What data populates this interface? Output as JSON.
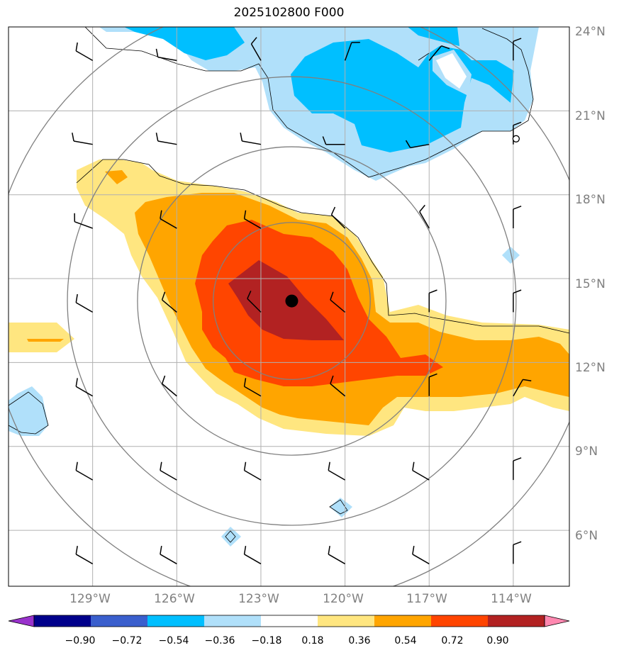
{
  "title": "2025102800 F000",
  "map": {
    "lon_range": [
      -132,
      -112
    ],
    "lat_range": [
      4,
      24
    ],
    "lat_ticks": [
      {
        "value": 24,
        "label": "24°N"
      },
      {
        "value": 21,
        "label": "21°N"
      },
      {
        "value": 18,
        "label": "18°N"
      },
      {
        "value": 15,
        "label": "15°N"
      },
      {
        "value": 12,
        "label": "12°N"
      },
      {
        "value": 9,
        "label": "9°N"
      },
      {
        "value": 6,
        "label": "6°N"
      }
    ],
    "lon_ticks": [
      {
        "value": -129,
        "label": "129°W"
      },
      {
        "value": -126,
        "label": "126°W"
      },
      {
        "value": -123,
        "label": "123°W"
      },
      {
        "value": -120,
        "label": "120°W"
      },
      {
        "value": -117,
        "label": "117°W"
      },
      {
        "value": -114,
        "label": "114°W"
      }
    ],
    "storm_center": {
      "lon": -121.9,
      "lat": 14.2
    },
    "small_marker": {
      "lon": -113.9,
      "lat": 20.0
    },
    "range_rings_deg": [
      2.8,
      5.5,
      8.0,
      10.8
    ]
  },
  "colorbar": {
    "levels": [
      "−0.90",
      "−0.72",
      "−0.54",
      "−0.36",
      "−0.18",
      "0.18",
      "0.36",
      "0.54",
      "0.72",
      "0.90"
    ],
    "colors": [
      "#9932cc",
      "#00008b",
      "#3a5fcd",
      "#00bfff",
      "#b0e0fa",
      "#ffffff",
      "#ffe680",
      "#ffa500",
      "#ff4500",
      "#b22222",
      "#ff88b0"
    ],
    "extend": "both"
  }
}
